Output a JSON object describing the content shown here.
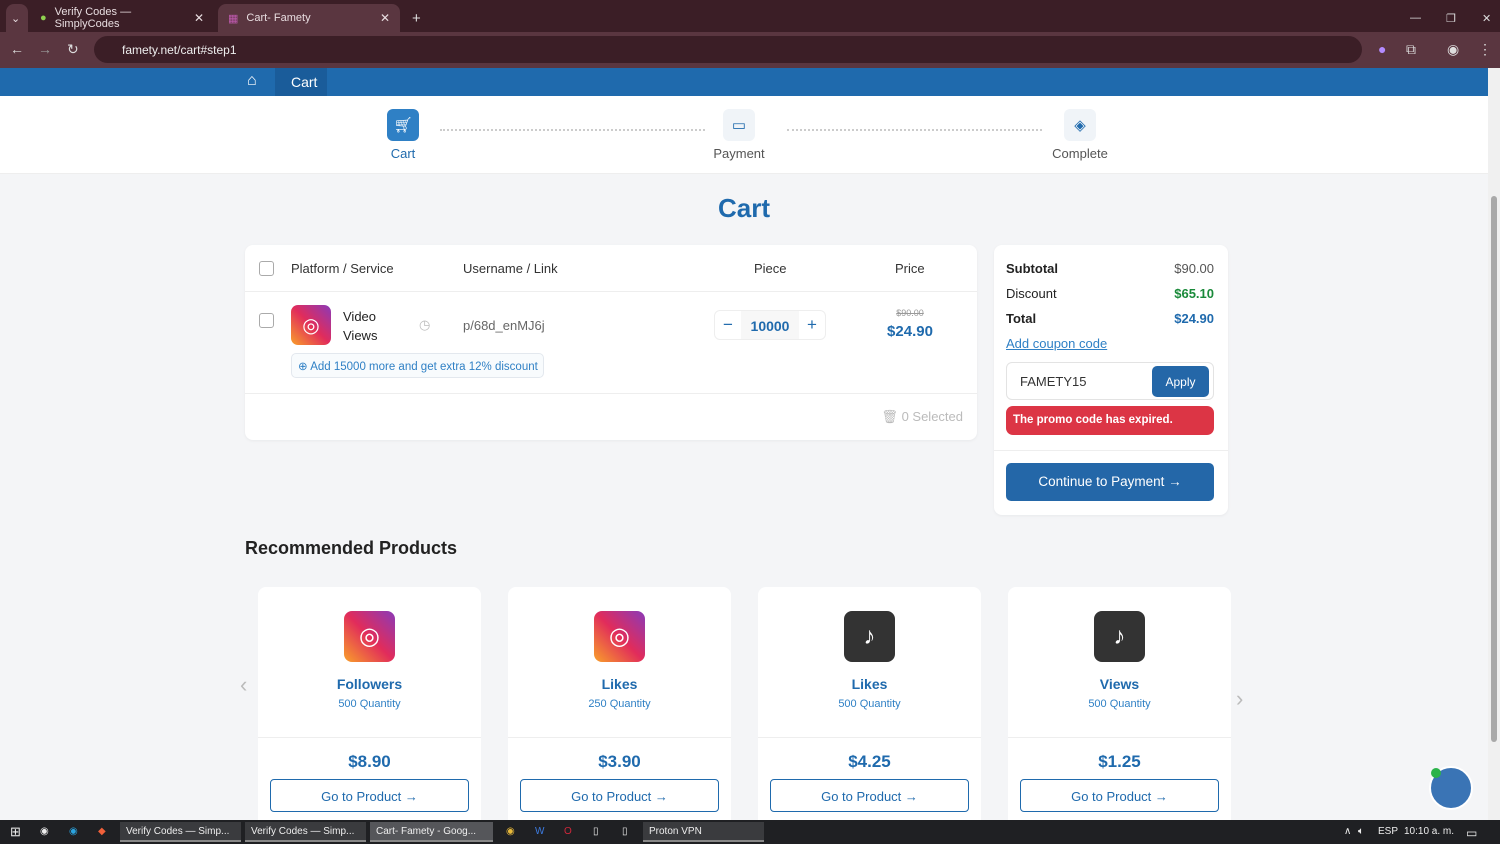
{
  "browser": {
    "tabs": [
      {
        "label": "Verify Codes — SimplyCodes"
      },
      {
        "label": "Cart- Famety",
        "active": true
      }
    ],
    "url": "famety.net/cart#step1"
  },
  "nav": {
    "breadcrumb": "Cart"
  },
  "steps": [
    {
      "label": "Cart",
      "active": true
    },
    {
      "label": "Payment"
    },
    {
      "label": "Complete"
    }
  ],
  "page_title": "Cart",
  "cart": {
    "headers": {
      "platform": "Platform / Service",
      "username": "Username / Link",
      "piece": "Piece",
      "price": "Price"
    },
    "items": [
      {
        "service": "Video Views",
        "username": "p/68d_enMJ6j",
        "quantity": "10000",
        "old_price": "$90.00",
        "price": "$24.90",
        "upsell": "Add 15000 more and get extra 12% discount"
      }
    ],
    "selected": "0 Selected"
  },
  "summary": {
    "subtotal_label": "Subtotal",
    "subtotal": "$90.00",
    "discount_label": "Discount",
    "discount": "$65.10",
    "total_label": "Total",
    "total": "$24.90",
    "coupon_link": "Add coupon code",
    "coupon_value": "FAMETY15",
    "apply": "Apply",
    "error": "The promo code has expired.",
    "continue": "Continue to Payment",
    "colors": {
      "accent": "#1f6aad",
      "discount": "#1a8a3a",
      "error": "#dc3545"
    }
  },
  "recommended": {
    "title": "Recommended Products",
    "products": [
      {
        "platform": "instagram",
        "name": "Followers",
        "quantity": "500 Quantity",
        "price": "$8.90",
        "button": "Go to Product"
      },
      {
        "platform": "instagram",
        "name": "Likes",
        "quantity": "250 Quantity",
        "price": "$3.90",
        "button": "Go to Product"
      },
      {
        "platform": "tiktok",
        "name": "Likes",
        "quantity": "500 Quantity",
        "price": "$4.25",
        "button": "Go to Product"
      },
      {
        "platform": "tiktok",
        "name": "Views",
        "quantity": "500 Quantity",
        "price": "$1.25",
        "button": "Go to Product"
      }
    ]
  },
  "taskbar": {
    "items": [
      "Verify Codes — Simp...",
      "Verify Codes — Simp...",
      "Cart- Famety - Goog...",
      "Proton VPN"
    ],
    "lang": "ESP",
    "time": "10:10 a. m."
  }
}
